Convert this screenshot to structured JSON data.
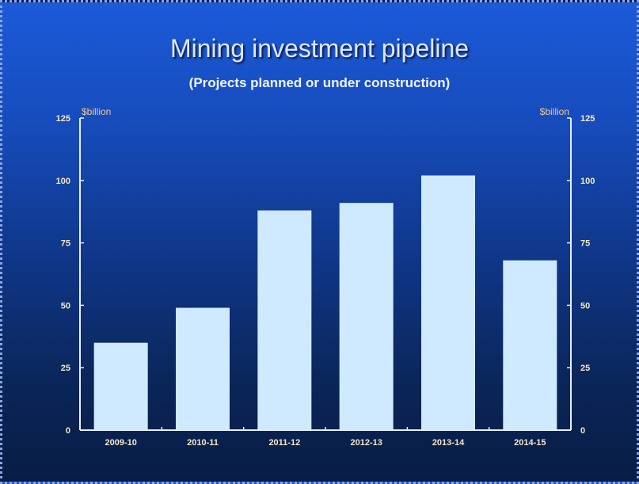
{
  "chart_data": {
    "type": "bar",
    "title": "Mining investment pipeline",
    "subtitle": "(Projects planned or under construction)",
    "categories": [
      "2009-10",
      "2010-11",
      "2011-12",
      "2012-13",
      "2013-14",
      "2014-15"
    ],
    "values": [
      35,
      49,
      88,
      91,
      102,
      68
    ],
    "ylabel_left": "$billion",
    "ylabel_right": "$billion",
    "ylim": [
      0,
      125
    ],
    "yticks": [
      0,
      25,
      50,
      75,
      100,
      125
    ],
    "grid": false,
    "colors": {
      "bar": "#cfeaff",
      "axis": "#e8eef8"
    }
  }
}
